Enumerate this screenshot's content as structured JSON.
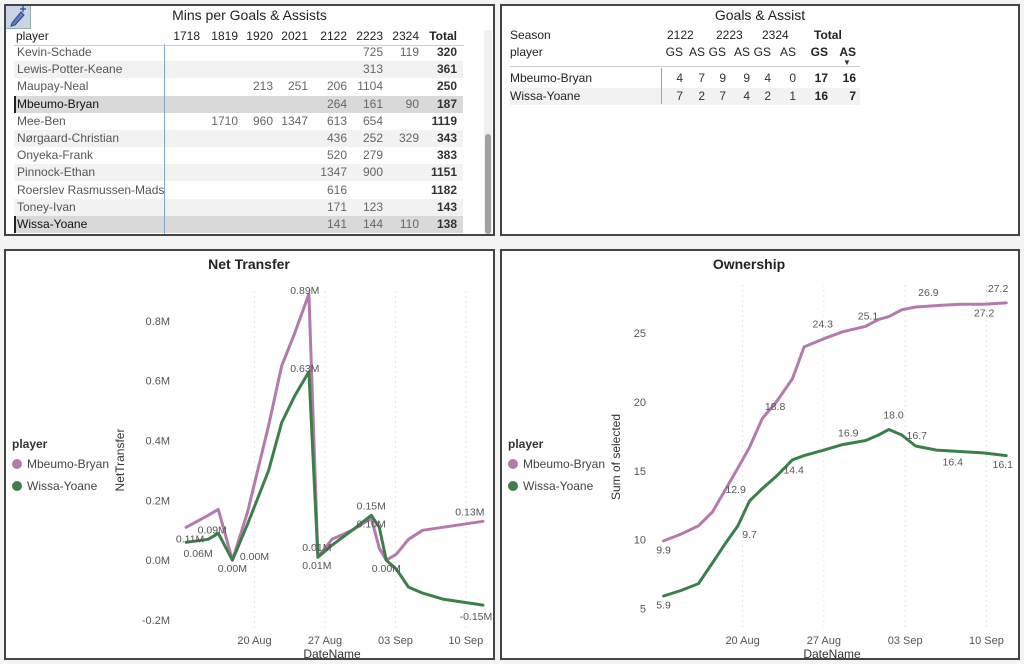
{
  "mins_table": {
    "title": "Mins per Goals & Assists",
    "player_header": "player",
    "sort_icon": "sort-up-icon",
    "seasons": [
      "1718",
      "1819",
      "1920",
      "2021",
      "2122",
      "2223",
      "2324"
    ],
    "total_header": "Total",
    "rows": [
      {
        "player": "Kevin-Schade",
        "values": [
          "",
          "",
          "",
          "",
          "",
          "725",
          "119"
        ],
        "total": "320"
      },
      {
        "player": "Lewis-Potter-Keane",
        "values": [
          "",
          "",
          "",
          "",
          "",
          "313",
          ""
        ],
        "total": "361"
      },
      {
        "player": "Maupay-Neal",
        "values": [
          "",
          "",
          "213",
          "251",
          "206",
          "1104",
          ""
        ],
        "total": "250"
      },
      {
        "player": "Mbeumo-Bryan",
        "values": [
          "",
          "",
          "",
          "",
          "264",
          "161",
          "90"
        ],
        "total": "187",
        "selected": true
      },
      {
        "player": "Mee-Ben",
        "values": [
          "",
          "1710",
          "960",
          "1347",
          "613",
          "654",
          ""
        ],
        "total": "1119"
      },
      {
        "player": "Nørgaard-Christian",
        "values": [
          "",
          "",
          "",
          "",
          "436",
          "252",
          "329"
        ],
        "total": "343"
      },
      {
        "player": "Onyeka-Frank",
        "values": [
          "",
          "",
          "",
          "",
          "520",
          "279",
          ""
        ],
        "total": "383"
      },
      {
        "player": "Pinnock-Ethan",
        "values": [
          "",
          "",
          "",
          "",
          "1347",
          "900",
          ""
        ],
        "total": "1151"
      },
      {
        "player": "Roerslev Rasmussen-Mads",
        "values": [
          "",
          "",
          "",
          "",
          "616",
          "",
          ""
        ],
        "total": "1182"
      },
      {
        "player": "Toney-Ivan",
        "values": [
          "",
          "",
          "",
          "",
          "171",
          "123",
          ""
        ],
        "total": "143"
      },
      {
        "player": "Wissa-Yoane",
        "values": [
          "",
          "",
          "",
          "",
          "141",
          "144",
          "110"
        ],
        "total": "138",
        "selected": true
      }
    ]
  },
  "ga_table": {
    "title": "Goals & Assist",
    "season_label": "Season",
    "player_label": "player",
    "seasons": [
      "2122",
      "2223",
      "2324"
    ],
    "total_label": "Total",
    "sub_headers": [
      "GS",
      "AS",
      "GS",
      "AS",
      "GS",
      "AS",
      "GS",
      "AS"
    ],
    "sort_icon": "sort-down-icon",
    "rows": [
      {
        "player": "Mbeumo-Bryan",
        "values": [
          "4",
          "7",
          "9",
          "9",
          "4",
          "0",
          "17",
          "16"
        ]
      },
      {
        "player": "Wissa-Yoane",
        "values": [
          "7",
          "2",
          "7",
          "4",
          "2",
          "1",
          "16",
          "7"
        ]
      }
    ]
  },
  "net_transfer": {
    "chart_data": {
      "type": "line",
      "title": "Net Transfer",
      "xlabel": "DateName",
      "ylabel": "NetTransfer",
      "legend_title": "player",
      "legend_position": "left",
      "ylim": [
        -0.23,
        0.9
      ],
      "y_ticks": [
        -0.2,
        0.0,
        0.2,
        0.4,
        0.6,
        0.8
      ],
      "y_tick_labels": [
        "-0.2M",
        "0.0M",
        "0.2M",
        "0.4M",
        "0.6M",
        "0.8M"
      ],
      "x_ticks": [
        "20 Aug",
        "27 Aug",
        "03 Sep",
        "10 Sep"
      ],
      "x_tick_pos": [
        19.8,
        26.8,
        33.8,
        40.8
      ],
      "xlim": [
        12,
        43
      ],
      "series": [
        {
          "name": "Mbeumo-Bryan",
          "color": "#b57aad",
          "x": [
            13,
            15.2,
            16.2,
            17.6,
            19.1,
            21.2,
            22.5,
            23.8,
            25.2,
            26.1,
            27.5,
            29.5,
            31.4,
            32.2,
            32.9,
            33.9,
            35.1,
            36.5,
            38.5,
            40.5,
            42.5
          ],
          "y": [
            0.11,
            0.15,
            0.17,
            0.0,
            0.16,
            0.45,
            0.65,
            0.76,
            0.89,
            0.01,
            0.07,
            0.1,
            0.14,
            0.04,
            0.0,
            0.02,
            0.07,
            0.1,
            0.11,
            0.12,
            0.13
          ]
        },
        {
          "name": "Wissa-Yoane",
          "color": "#3d7f4a",
          "x": [
            13,
            15.2,
            16.2,
            17.6,
            19.1,
            21.2,
            22.5,
            23.8,
            25.2,
            26.1,
            27.5,
            29.5,
            31.4,
            32.2,
            32.9,
            33.9,
            35.1,
            36.5,
            38.5,
            40.5,
            42.5
          ],
          "y": [
            0.06,
            0.07,
            0.09,
            0.0,
            0.12,
            0.3,
            0.46,
            0.55,
            0.63,
            0.01,
            0.05,
            0.1,
            0.15,
            0.11,
            0.0,
            -0.03,
            -0.09,
            -0.11,
            -0.13,
            -0.14,
            -0.15
          ]
        }
      ],
      "annotations": [
        {
          "text": "0.89M",
          "x": 24.8,
          "y": 0.89
        },
        {
          "text": "0.63M",
          "x": 24.8,
          "y": 0.63
        },
        {
          "text": "0.09M",
          "x": 15.6,
          "y": 0.09
        },
        {
          "text": "0.11M",
          "x": 13.4,
          "y": 0.06
        },
        {
          "text": "0.06M",
          "x": 14.2,
          "y": 0.01
        },
        {
          "text": "0.00M",
          "x": 17.6,
          "y": -0.04
        },
        {
          "text": "0.00M",
          "x": 19.8,
          "y": 0.0
        },
        {
          "text": "0.01M",
          "x": 26.0,
          "y": 0.03
        },
        {
          "text": "0.01M",
          "x": 26.0,
          "y": -0.03
        },
        {
          "text": "0.15M",
          "x": 31.4,
          "y": 0.17
        },
        {
          "text": "0.10M",
          "x": 31.4,
          "y": 0.11
        },
        {
          "text": "0.00M",
          "x": 32.9,
          "y": -0.04
        },
        {
          "text": "0.13M",
          "x": 41.2,
          "y": 0.15
        },
        {
          "text": "-0.15M",
          "x": 41.8,
          "y": -0.2
        }
      ]
    }
  },
  "ownership": {
    "chart_data": {
      "type": "line",
      "title": "Ownership",
      "xlabel": "DateName",
      "ylabel": "Sum of selected",
      "legend_title": "player",
      "legend_position": "left",
      "ylim": [
        3.5,
        28.5
      ],
      "y_ticks": [
        5,
        10,
        15,
        20,
        25
      ],
      "y_tick_labels": [
        "5",
        "10",
        "15",
        "20",
        "25"
      ],
      "x_ticks": [
        "20 Aug",
        "27 Aug",
        "03 Sep",
        "10 Sep"
      ],
      "x_tick_pos": [
        19.8,
        26.8,
        33.8,
        40.8
      ],
      "xlim": [
        12,
        43
      ],
      "series": [
        {
          "name": "Mbeumo-Bryan",
          "color": "#b57aad",
          "x": [
            13,
            14.5,
            16,
            17.2,
            18.3,
            19.4,
            20.4,
            21.5,
            22.7,
            24.1,
            25.1,
            26.8,
            28.4,
            30.4,
            31.5,
            32.4,
            33.5,
            34.7,
            36.5,
            38.5,
            40.5,
            42.5
          ],
          "y": [
            9.9,
            10.4,
            11.0,
            12.0,
            13.6,
            15.2,
            16.7,
            18.8,
            20.0,
            21.7,
            24.0,
            24.6,
            25.1,
            25.5,
            26.0,
            26.2,
            26.7,
            26.9,
            27.0,
            27.1,
            27.1,
            27.2
          ]
        },
        {
          "name": "Wissa-Yoane",
          "color": "#3d7f4a",
          "x": [
            13,
            14.5,
            16,
            17.2,
            18.3,
            19.4,
            20.4,
            21.5,
            22.7,
            24.1,
            25.1,
            26.8,
            28.4,
            30.4,
            31.5,
            32.4,
            33.5,
            34.7,
            36.5,
            38.5,
            40.5,
            42.5
          ],
          "y": [
            5.9,
            6.3,
            6.8,
            8.3,
            9.7,
            11.0,
            12.8,
            13.7,
            14.6,
            15.8,
            16.1,
            16.5,
            16.9,
            17.2,
            17.6,
            18.0,
            17.6,
            16.8,
            16.5,
            16.4,
            16.3,
            16.1
          ]
        }
      ],
      "annotations": [
        {
          "text": "9.9",
          "x": 13.0,
          "y": 9.0
        },
        {
          "text": "5.9",
          "x": 13.0,
          "y": 5.0
        },
        {
          "text": "12.9",
          "x": 19.2,
          "y": 13.4
        },
        {
          "text": "9.7",
          "x": 20.4,
          "y": 10.1
        },
        {
          "text": "18.8",
          "x": 22.6,
          "y": 19.4
        },
        {
          "text": "14.4",
          "x": 24.2,
          "y": 14.8
        },
        {
          "text": "24.3",
          "x": 26.7,
          "y": 25.4
        },
        {
          "text": "16.9",
          "x": 28.9,
          "y": 17.5
        },
        {
          "text": "25.1",
          "x": 30.6,
          "y": 26.0
        },
        {
          "text": "18.0",
          "x": 32.8,
          "y": 18.8
        },
        {
          "text": "16.7",
          "x": 34.8,
          "y": 17.3
        },
        {
          "text": "26.9",
          "x": 35.8,
          "y": 27.7
        },
        {
          "text": "16.4",
          "x": 37.9,
          "y": 15.4
        },
        {
          "text": "27.2",
          "x": 41.8,
          "y": 28.0
        },
        {
          "text": "27.2",
          "x": 40.6,
          "y": 26.2
        },
        {
          "text": "16.1",
          "x": 42.2,
          "y": 15.2
        }
      ]
    }
  }
}
